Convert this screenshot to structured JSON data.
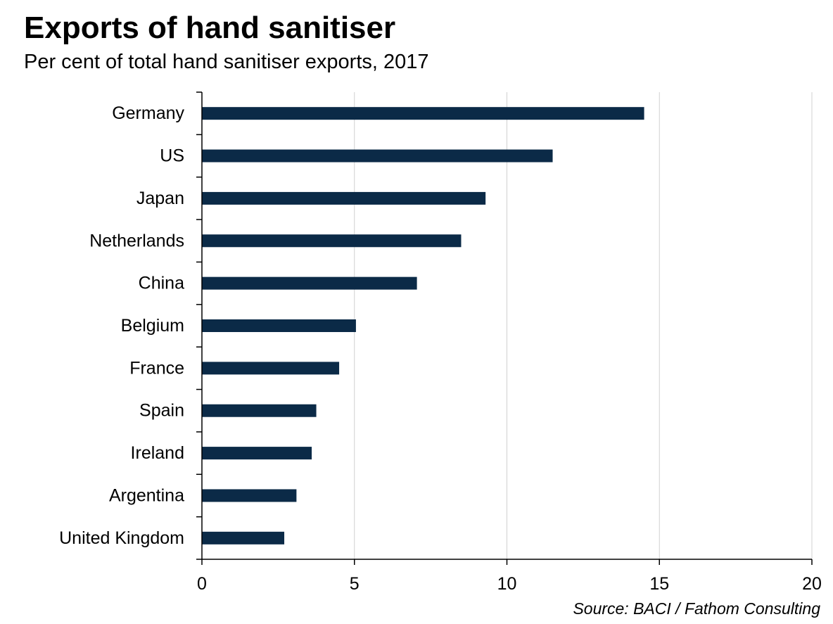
{
  "title": "Exports of hand sanitiser",
  "subtitle": "Per cent of total hand sanitiser exports, 2017",
  "source": "Source: BACI / Fathom Consulting",
  "colors": {
    "bar": "#0b2a47",
    "grid": "#d0d0d0",
    "axis": "#000000"
  },
  "chart_data": {
    "type": "bar",
    "orientation": "horizontal",
    "categories": [
      "Germany",
      "US",
      "Japan",
      "Netherlands",
      "China",
      "Belgium",
      "France",
      "Spain",
      "Ireland",
      "Argentina",
      "United Kingdom"
    ],
    "values": [
      14.5,
      11.5,
      9.3,
      8.5,
      7.05,
      5.05,
      4.5,
      3.75,
      3.6,
      3.1,
      2.7
    ],
    "xlim": [
      0,
      20
    ],
    "xticks": [
      "0",
      "5",
      "10",
      "15",
      "20"
    ],
    "xlabel": "",
    "ylabel": "",
    "grid": "vertical",
    "legend": "none"
  }
}
